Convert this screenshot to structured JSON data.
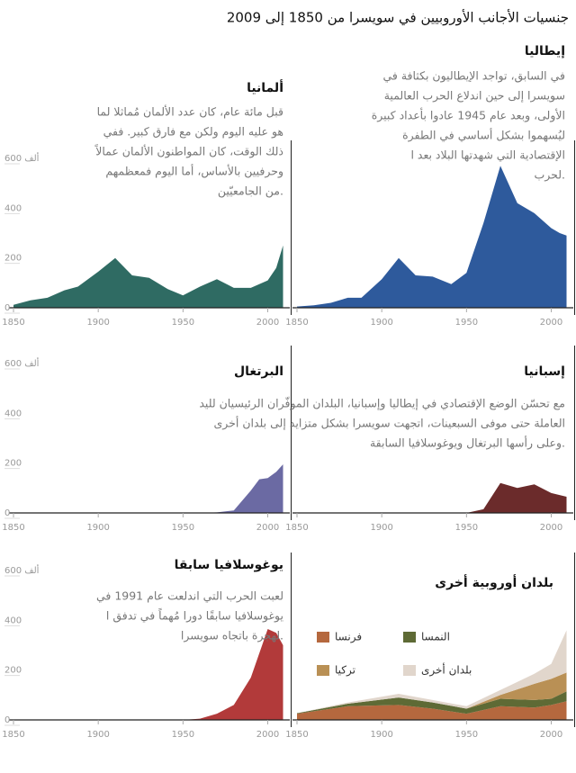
{
  "title": "جنسيات الأجانب الأوروبيين في سويسرا من 1850 إلى 2009",
  "chart_data": [
    {
      "type": "area",
      "title": "ألمانيا",
      "color": "#2f6b63",
      "annotation": [
        "قبل مائة عام، كان عدد الألمان مُماثلا لما",
        "هو عليه اليوم ولكن مع فارق كبير. ففي",
        "ذلك الوقت، كان المواطنون الألمان عمالاً",
        "وحرفيين بالأساس، أما اليوم فمعظمهم",
        "من الجامعيّين."
      ],
      "x": [
        1850,
        1860,
        1870,
        1880,
        1888,
        1900,
        1910,
        1920,
        1930,
        1941,
        1950,
        1960,
        1970,
        1980,
        1990,
        2000,
        2005,
        2009
      ],
      "values": [
        12,
        30,
        40,
        70,
        85,
        145,
        200,
        130,
        120,
        75,
        50,
        85,
        115,
        80,
        80,
        110,
        160,
        250
      ],
      "xlim": [
        1850,
        2013
      ],
      "ylim": [
        0,
        600
      ],
      "xticks": [
        1850,
        1900,
        1950,
        2000
      ],
      "yticks": [
        0,
        200,
        400,
        {
          "value": 600,
          "label": "600 ألف"
        }
      ]
    },
    {
      "type": "area",
      "title": "إيطاليا",
      "color": "#2e5a9c",
      "annotation": [
        "في السابق، تواجد الإيطاليون بكثافة في",
        "سويسرا إلى حين اندلاع الحرب العالمية",
        "الأولى، وبعد عام 1945 عادوا بأعداد كبيرة",
        "ليُسهموا بشكل أساسي في الطفرة",
        "الإقتصادية التي شهدتها البلاد بعد ا",
        "لحرب."
      ],
      "x": [
        1850,
        1860,
        1870,
        1880,
        1888,
        1900,
        1910,
        1920,
        1930,
        1941,
        1950,
        1960,
        1970,
        1980,
        1990,
        2000,
        2005,
        2009
      ],
      "values": [
        5,
        10,
        20,
        40,
        40,
        115,
        200,
        130,
        125,
        95,
        140,
        340,
        570,
        420,
        380,
        320,
        300,
        290
      ],
      "xlim": [
        1850,
        2013
      ],
      "ylim": [
        0,
        600
      ],
      "xticks": [
        1850,
        1900,
        1950,
        2000
      ]
    },
    {
      "type": "area",
      "title": "البرتغال",
      "color": "#6b6aa3",
      "x": [
        1850,
        1900,
        1950,
        1960,
        1970,
        1980,
        1990,
        1995,
        2000,
        2005,
        2009
      ],
      "values": [
        0,
        0,
        0,
        0,
        2,
        10,
        90,
        135,
        140,
        165,
        195
      ],
      "xlim": [
        1850,
        2013
      ],
      "ylim": [
        0,
        600
      ],
      "xticks": [
        1850,
        1900,
        1950,
        2000
      ],
      "yticks": [
        0,
        200,
        400,
        {
          "value": 600,
          "label": "600 ألف"
        }
      ]
    },
    {
      "type": "area",
      "title": "إسبانيا",
      "color": "#6b2b2b",
      "annotation": [
        "مع تحسّن الوضع الإقتصادي في إيطاليا وإسبانيا، البلدان الموفّران الرئيسيان لليد",
        "العاملة حتى موفى السبعينات، اتجهت سويسرا بشكل متزايد إلى بلدان أخرى",
        "وعلى رأسها البرتغال ويوغوسلافيا السابقة."
      ],
      "x": [
        1850,
        1900,
        1950,
        1960,
        1970,
        1980,
        1990,
        2000,
        2009
      ],
      "values": [
        0,
        0,
        0,
        15,
        120,
        100,
        115,
        80,
        65
      ],
      "xlim": [
        1850,
        2013
      ],
      "ylim": [
        0,
        600
      ],
      "xticks": [
        1850,
        1900,
        1950,
        2000
      ]
    },
    {
      "type": "area",
      "title": "يوغوسلافيا سابقا",
      "color": "#b23a3a",
      "annotation": [
        "لعبت الحرب التي اندلعت عام 1991 في",
        "يوغوسلافيا سابقًا دورا مُهماً في تدفق ا",
        "لهجرة باتجاه سويسرا."
      ],
      "x": [
        1850,
        1900,
        1950,
        1960,
        1970,
        1980,
        1990,
        2000,
        2005,
        2009
      ],
      "values": [
        0,
        0,
        0,
        5,
        25,
        60,
        170,
        365,
        350,
        300
      ],
      "xlim": [
        1850,
        2013
      ],
      "ylim": [
        0,
        600
      ],
      "xticks": [
        1850,
        1900,
        1950,
        2000
      ],
      "yticks": [
        0,
        200,
        400,
        {
          "value": 600,
          "label": "600 ألف"
        }
      ]
    },
    {
      "type": "stacked_area",
      "title": "بلدان أوروبية أخرى",
      "x": [
        1850,
        1880,
        1910,
        1930,
        1950,
        1970,
        1990,
        2000,
        2009
      ],
      "series": [
        {
          "name": "فرنسا",
          "color": "#b5683e",
          "values": [
            25,
            55,
            60,
            45,
            25,
            55,
            50,
            60,
            75
          ]
        },
        {
          "name": "النمسا",
          "color": "#5e6a35",
          "values": [
            2,
            10,
            30,
            25,
            20,
            30,
            30,
            25,
            40
          ]
        },
        {
          "name": "تركيا",
          "color": "#b99055",
          "values": [
            0,
            0,
            0,
            0,
            0,
            15,
            65,
            80,
            75
          ]
        },
        {
          "name": "بلدان أخرى",
          "color": "#e1d6cc",
          "values": [
            0,
            5,
            15,
            10,
            10,
            20,
            40,
            60,
            170
          ]
        }
      ],
      "xlim": [
        1850,
        2013
      ],
      "ylim": [
        0,
        600
      ],
      "xticks": [
        1850,
        1900,
        1950,
        2000
      ]
    }
  ]
}
